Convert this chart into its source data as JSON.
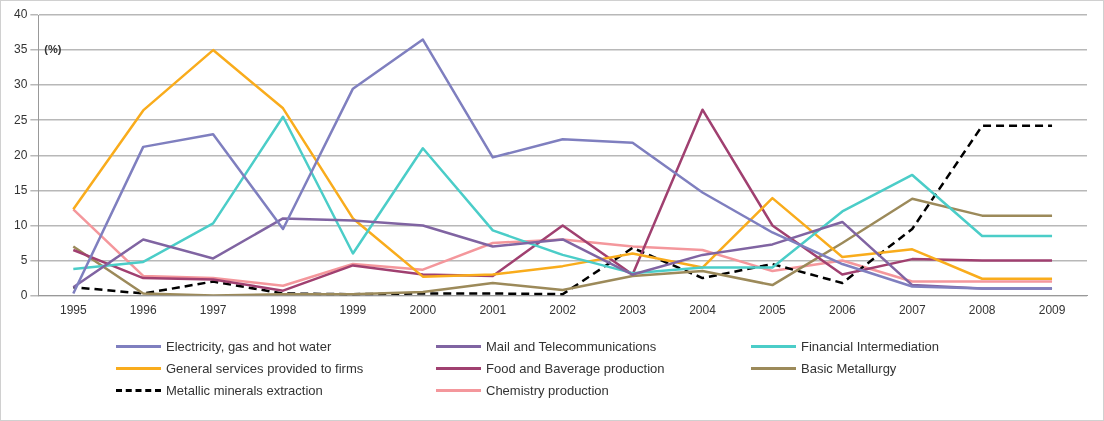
{
  "chart_data": {
    "type": "line",
    "ylabel": "(%)",
    "categories": [
      "1995",
      "1996",
      "1997",
      "1998",
      "1999",
      "2000",
      "2001",
      "2002",
      "2003",
      "2004",
      "2005",
      "2006",
      "2007",
      "2008",
      "2009"
    ],
    "ylim": [
      0,
      40
    ],
    "yticks": [
      0,
      5,
      10,
      15,
      20,
      25,
      30,
      35,
      40
    ],
    "grid": "y",
    "legend": "bottom",
    "marker": "none",
    "series": [
      {
        "name": "Electricity, gas and hot water",
        "color": "#7f7fbf",
        "values": [
          0.3,
          21.2,
          23,
          9.5,
          29.5,
          36.5,
          19.7,
          22.3,
          21.8,
          14.7,
          9,
          4.5,
          1.3,
          1,
          1
        ]
      },
      {
        "name": "Mail and Telecommunications",
        "color": "#8064a2",
        "values": [
          1.2,
          8,
          5.3,
          11,
          10.7,
          10,
          7,
          8,
          3,
          5.8,
          7.3,
          10.5,
          1.5,
          1,
          1
        ]
      },
      {
        "name": "Financial Intermediation",
        "color": "#4bcdc8",
        "values": [
          3.8,
          4.8,
          10.3,
          25.5,
          6,
          21,
          9.3,
          5.8,
          3.2,
          4,
          4,
          12,
          17.2,
          8.5,
          8.5
        ]
      },
      {
        "name": "General services provided to firms",
        "color": "#f9ac1c",
        "values": [
          12.3,
          26.4,
          35,
          26.7,
          11,
          2.7,
          3,
          4.2,
          6,
          4,
          13.9,
          5.5,
          6.6,
          2.4,
          2.4
        ]
      },
      {
        "name": "Food and Baverage production",
        "color": "#a04070",
        "values": [
          6.5,
          2.5,
          2.3,
          0.7,
          4.3,
          3,
          2.8,
          10,
          3,
          26.5,
          10,
          3,
          5.2,
          5,
          5
        ]
      },
      {
        "name": "Basic Metallurgy",
        "color": "#9c8a5a",
        "values": [
          7,
          0.3,
          0,
          0.2,
          0.2,
          0.5,
          1.8,
          0.8,
          2.8,
          3.5,
          1.5,
          7.5,
          13.8,
          11.4,
          11.4
        ]
      },
      {
        "name": "Metallic minerals extraction",
        "color": "#000000",
        "line_style": "dashed",
        "values": [
          1.2,
          0.3,
          2,
          0.3,
          0.2,
          0.3,
          0.3,
          0.2,
          6.8,
          2.5,
          4.5,
          1.8,
          9.5,
          24.2,
          24.2
        ]
      },
      {
        "name": "Chemistry production",
        "color": "#f4979c",
        "values": [
          12.3,
          2.8,
          2.5,
          1.4,
          4.5,
          3.7,
          7.5,
          8,
          7,
          6.5,
          3.5,
          5,
          2,
          2,
          2
        ]
      }
    ]
  }
}
